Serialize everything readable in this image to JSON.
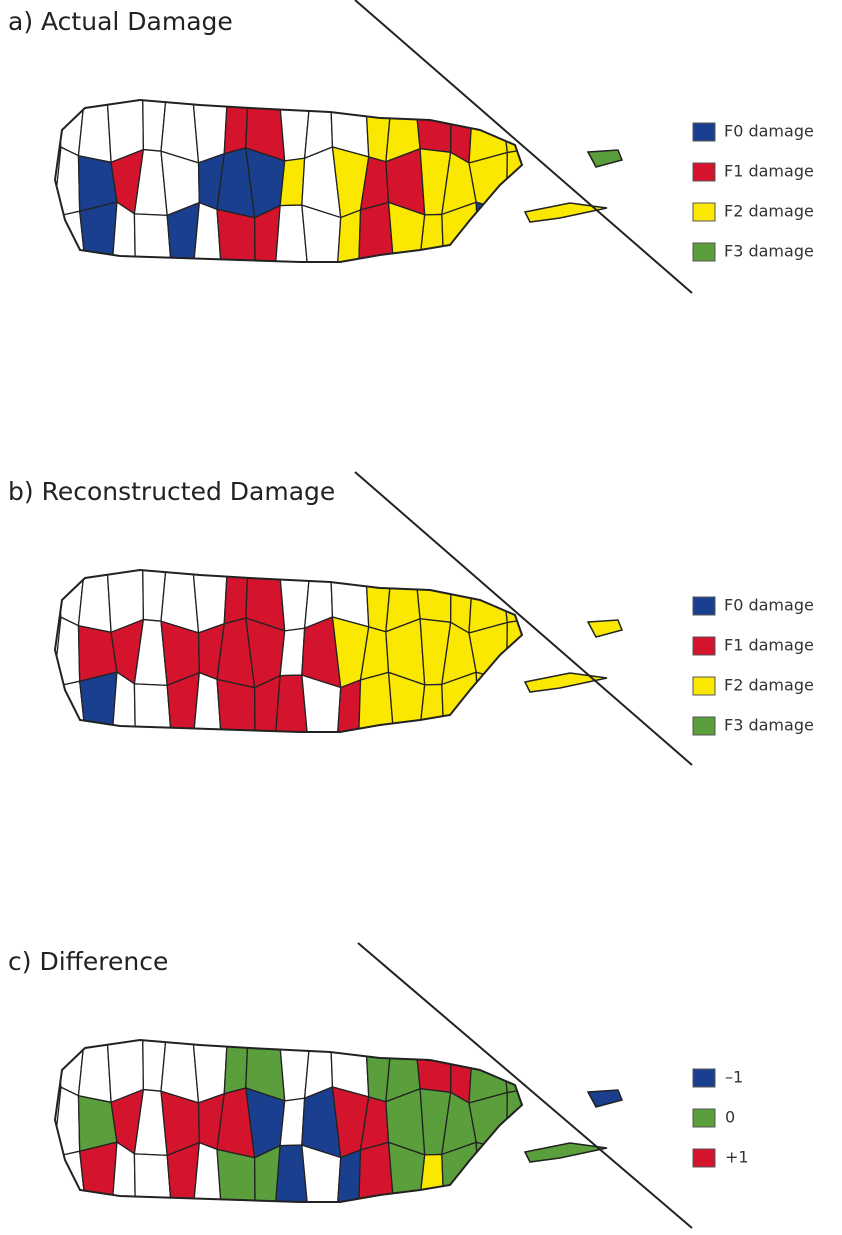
{
  "panels": [
    {
      "title": "a) Actual Damage",
      "legend": [
        {
          "label": "F0 damage",
          "color": "#1b3f8f"
        },
        {
          "label": "F1 damage",
          "color": "#d4142c"
        },
        {
          "label": "F2 damage",
          "color": "#fbe800"
        },
        {
          "label": "F3 damage",
          "color": "#5b9e3c"
        }
      ]
    },
    {
      "title": "b) Reconstructed Damage",
      "legend": [
        {
          "label": "F0 damage",
          "color": "#1b3f8f"
        },
        {
          "label": "F1 damage",
          "color": "#d4142c"
        },
        {
          "label": "F2 damage",
          "color": "#fbe800"
        },
        {
          "label": "F3 damage",
          "color": "#5b9e3c"
        }
      ]
    },
    {
      "title": "c) Difference",
      "legend": [
        {
          "label": "–1",
          "color": "#1b3f8f"
        },
        {
          "label": "0",
          "color": "#5b9e3c"
        },
        {
          "label": "+1",
          "color": "#d4142c"
        }
      ]
    }
  ]
}
